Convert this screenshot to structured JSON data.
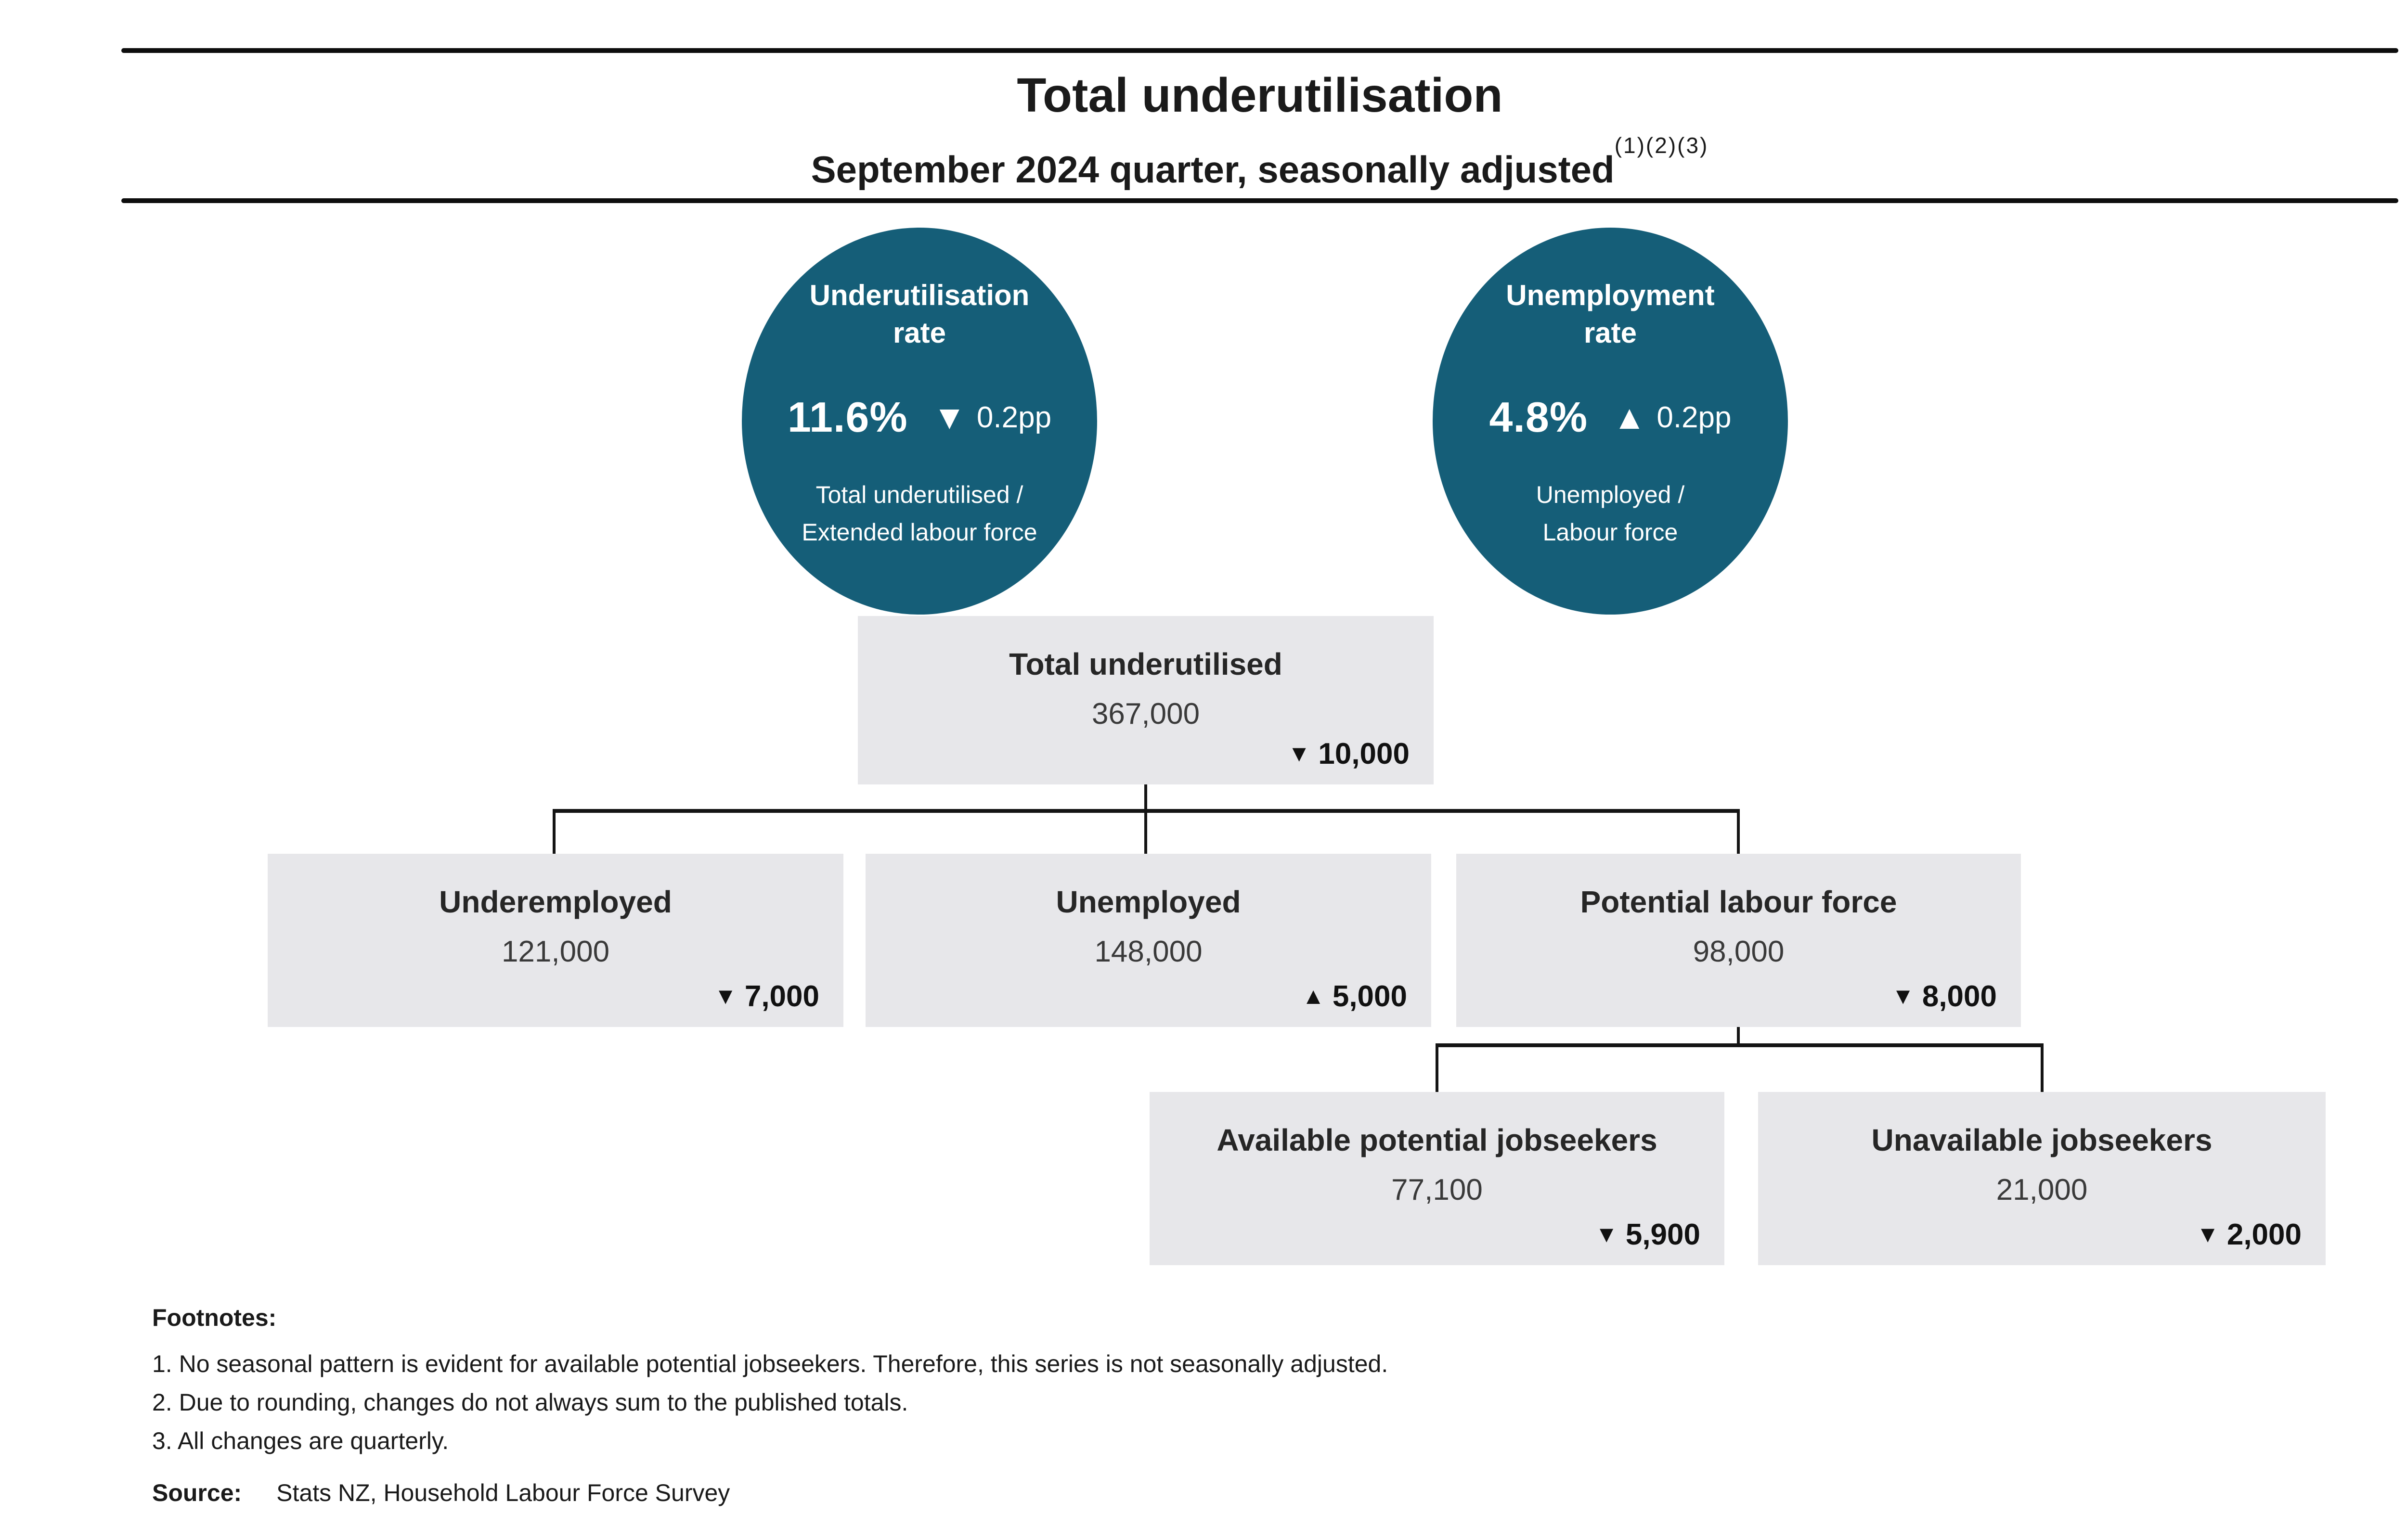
{
  "colors": {
    "teal": "#155E78",
    "box_bg": "#E7E7EA",
    "line": "#141414"
  },
  "header": {
    "title": "Total underutilisation",
    "subtitle": "September 2024 quarter, seasonally adjusted",
    "superscript": "(1)(2)(3)"
  },
  "circles": {
    "underutilisation": {
      "title_line1": "Underutilisation",
      "title_line2": "rate",
      "value": "11.6%",
      "arrow": "▼",
      "change": "0.2pp",
      "desc_line1": "Total underutilised /",
      "desc_line2": "Extended labour force"
    },
    "unemployment": {
      "title_line1": "Unemployment",
      "title_line2": "rate",
      "value": "4.8%",
      "arrow": "▲",
      "change": "0.2pp",
      "desc_line1": "Unemployed /",
      "desc_line2": "Labour force"
    }
  },
  "tree": {
    "total": {
      "label": "Total underutilised",
      "value": "367,000",
      "arrow": "▼",
      "change": "10,000"
    },
    "underemployed": {
      "label": "Underemployed",
      "value": "121,000",
      "arrow": "▼",
      "change": "7,000"
    },
    "unemployed": {
      "label": "Unemployed",
      "value": "148,000",
      "arrow": "▲",
      "change": "5,000"
    },
    "potential": {
      "label": "Potential labour force",
      "value": "98,000",
      "arrow": "▼",
      "change": "8,000"
    },
    "available": {
      "label": "Available potential jobseekers",
      "value": "77,100",
      "arrow": "▼",
      "change": "5,900"
    },
    "unavailable": {
      "label": "Unavailable jobseekers",
      "value": "21,000",
      "arrow": "▼",
      "change": "2,000"
    }
  },
  "footnotes": {
    "heading": "Footnotes:",
    "items": [
      "1. No seasonal pattern is evident for available potential jobseekers. Therefore, this series is not seasonally adjusted.",
      "2. Due to rounding, changes do not always sum to the published totals.",
      "3. All changes are quarterly."
    ],
    "source_label": "Source:",
    "source_text": "Stats NZ, Household Labour Force Survey"
  }
}
